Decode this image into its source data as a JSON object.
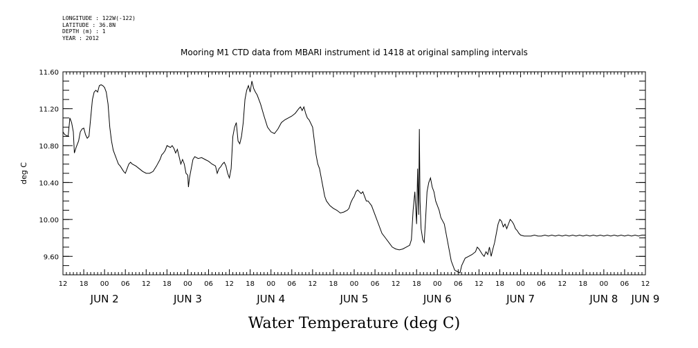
{
  "metadata": {
    "longitude": "LONGITUDE : 122W(-122)",
    "latitude": "LATITUDE : 36.8N",
    "depth": "DEPTH (m) : 1",
    "year": "YEAR : 2012"
  },
  "chart_data": {
    "type": "line",
    "title": "Mooring M1 CTD data from MBARI instrument id 1418 at original sampling intervals",
    "ylabel": "deg C",
    "xlabel": "Water Temperature (deg C)",
    "ylim": [
      9.4,
      11.6
    ],
    "yticks": [
      "11.60",
      "11.20",
      "10.80",
      "10.40",
      "10.00",
      "9.60"
    ],
    "ytick_values": [
      11.6,
      11.2,
      10.8,
      10.4,
      10.0,
      9.6
    ],
    "x_unit": "hours since JUN 1 12:00",
    "xlim": [
      0,
      168
    ],
    "hour_ticks": [
      {
        "t": 0,
        "label": "12"
      },
      {
        "t": 6,
        "label": "18"
      },
      {
        "t": 12,
        "label": "00"
      },
      {
        "t": 18,
        "label": "06"
      },
      {
        "t": 24,
        "label": "12"
      },
      {
        "t": 30,
        "label": "18"
      },
      {
        "t": 36,
        "label": "00"
      },
      {
        "t": 42,
        "label": "06"
      },
      {
        "t": 48,
        "label": "12"
      },
      {
        "t": 54,
        "label": "18"
      },
      {
        "t": 60,
        "label": "00"
      },
      {
        "t": 66,
        "label": "06"
      },
      {
        "t": 72,
        "label": "12"
      },
      {
        "t": 78,
        "label": "18"
      },
      {
        "t": 84,
        "label": "00"
      },
      {
        "t": 90,
        "label": "06"
      },
      {
        "t": 96,
        "label": "12"
      },
      {
        "t": 102,
        "label": "18"
      },
      {
        "t": 108,
        "label": "00"
      },
      {
        "t": 114,
        "label": "06"
      },
      {
        "t": 120,
        "label": "12"
      },
      {
        "t": 126,
        "label": "18"
      },
      {
        "t": 132,
        "label": "00"
      },
      {
        "t": 138,
        "label": "06"
      },
      {
        "t": 144,
        "label": "12"
      },
      {
        "t": 150,
        "label": "18"
      },
      {
        "t": 156,
        "label": "00"
      },
      {
        "t": 162,
        "label": "06"
      },
      {
        "t": 168,
        "label": "12"
      }
    ],
    "day_labels": [
      {
        "t": 12,
        "label": "JUN  2"
      },
      {
        "t": 36,
        "label": "JUN  3"
      },
      {
        "t": 60,
        "label": "JUN  4"
      },
      {
        "t": 84,
        "label": "JUN  5"
      },
      {
        "t": 108,
        "label": "JUN  6"
      },
      {
        "t": 132,
        "label": "JUN  7"
      },
      {
        "t": 156,
        "label": "JUN  8"
      },
      {
        "t": 168,
        "label": "JUN  9"
      }
    ],
    "series": [
      {
        "color": "#000000",
        "points": [
          [
            0,
            10.95
          ],
          [
            0.5,
            10.92
          ],
          [
            1,
            10.91
          ],
          [
            1.5,
            10.9
          ],
          [
            2,
            11.1
          ],
          [
            2.5,
            11.05
          ],
          [
            3,
            10.95
          ],
          [
            3.3,
            10.72
          ],
          [
            3.8,
            10.78
          ],
          [
            4.5,
            10.85
          ],
          [
            5,
            10.95
          ],
          [
            5.5,
            10.98
          ],
          [
            6,
            10.99
          ],
          [
            6.5,
            10.92
          ],
          [
            7,
            10.88
          ],
          [
            7.5,
            10.9
          ],
          [
            8,
            11.1
          ],
          [
            8.5,
            11.3
          ],
          [
            9,
            11.38
          ],
          [
            9.5,
            11.4
          ],
          [
            10,
            11.38
          ],
          [
            10.5,
            11.45
          ],
          [
            11,
            11.46
          ],
          [
            11.5,
            11.45
          ],
          [
            12,
            11.43
          ],
          [
            12.5,
            11.38
          ],
          [
            13,
            11.25
          ],
          [
            13.5,
            11.0
          ],
          [
            14,
            10.85
          ],
          [
            14.5,
            10.75
          ],
          [
            15,
            10.7
          ],
          [
            15.5,
            10.65
          ],
          [
            16,
            10.6
          ],
          [
            16.5,
            10.58
          ],
          [
            17,
            10.55
          ],
          [
            17.5,
            10.52
          ],
          [
            18,
            10.5
          ],
          [
            18.5,
            10.55
          ],
          [
            19,
            10.6
          ],
          [
            19.5,
            10.62
          ],
          [
            20,
            10.6
          ],
          [
            21,
            10.58
          ],
          [
            22,
            10.55
          ],
          [
            23,
            10.52
          ],
          [
            24,
            10.5
          ],
          [
            25,
            10.5
          ],
          [
            26,
            10.52
          ],
          [
            27,
            10.58
          ],
          [
            28,
            10.65
          ],
          [
            28.5,
            10.7
          ],
          [
            29,
            10.72
          ],
          [
            29.5,
            10.75
          ],
          [
            30,
            10.8
          ],
          [
            31,
            10.78
          ],
          [
            31.5,
            10.8
          ],
          [
            32,
            10.77
          ],
          [
            32.5,
            10.72
          ],
          [
            33,
            10.76
          ],
          [
            33.5,
            10.68
          ],
          [
            34,
            10.6
          ],
          [
            34.5,
            10.65
          ],
          [
            35,
            10.6
          ],
          [
            35.5,
            10.5
          ],
          [
            36,
            10.48
          ],
          [
            36.2,
            10.35
          ],
          [
            36.5,
            10.45
          ],
          [
            37,
            10.55
          ],
          [
            37.5,
            10.65
          ],
          [
            38,
            10.68
          ],
          [
            39,
            10.66
          ],
          [
            40,
            10.67
          ],
          [
            41,
            10.65
          ],
          [
            42,
            10.63
          ],
          [
            43,
            10.6
          ],
          [
            44,
            10.58
          ],
          [
            44.5,
            10.5
          ],
          [
            45,
            10.55
          ],
          [
            45.5,
            10.57
          ],
          [
            46,
            10.6
          ],
          [
            46.5,
            10.62
          ],
          [
            47,
            10.58
          ],
          [
            47.5,
            10.5
          ],
          [
            48,
            10.45
          ],
          [
            48.5,
            10.55
          ],
          [
            49,
            10.9
          ],
          [
            49.5,
            11.0
          ],
          [
            50,
            11.05
          ],
          [
            50.5,
            10.85
          ],
          [
            51,
            10.82
          ],
          [
            51.5,
            10.9
          ],
          [
            52,
            11.05
          ],
          [
            52.5,
            11.3
          ],
          [
            53,
            11.4
          ],
          [
            53.5,
            11.45
          ],
          [
            54,
            11.38
          ],
          [
            54.5,
            11.5
          ],
          [
            55,
            11.42
          ],
          [
            55.5,
            11.38
          ],
          [
            56,
            11.35
          ],
          [
            57,
            11.25
          ],
          [
            58,
            11.12
          ],
          [
            59,
            11.0
          ],
          [
            60,
            10.95
          ],
          [
            61,
            10.93
          ],
          [
            62,
            10.98
          ],
          [
            63,
            11.05
          ],
          [
            64,
            11.08
          ],
          [
            65,
            11.1
          ],
          [
            66,
            11.12
          ],
          [
            67,
            11.15
          ],
          [
            68,
            11.2
          ],
          [
            68.5,
            11.22
          ],
          [
            69,
            11.18
          ],
          [
            69.5,
            11.22
          ],
          [
            70,
            11.15
          ],
          [
            70.5,
            11.1
          ],
          [
            71,
            11.08
          ],
          [
            72,
            11.0
          ],
          [
            72.5,
            10.85
          ],
          [
            73,
            10.7
          ],
          [
            73.5,
            10.6
          ],
          [
            74,
            10.55
          ],
          [
            74.5,
            10.45
          ],
          [
            75,
            10.35
          ],
          [
            75.5,
            10.25
          ],
          [
            76,
            10.2
          ],
          [
            77,
            10.15
          ],
          [
            78,
            10.12
          ],
          [
            79,
            10.1
          ],
          [
            80,
            10.07
          ],
          [
            81,
            10.08
          ],
          [
            82,
            10.1
          ],
          [
            82.5,
            10.12
          ],
          [
            83,
            10.18
          ],
          [
            83.5,
            10.22
          ],
          [
            84,
            10.25
          ],
          [
            84.5,
            10.3
          ],
          [
            85,
            10.32
          ],
          [
            85.5,
            10.3
          ],
          [
            86,
            10.28
          ],
          [
            86.5,
            10.3
          ],
          [
            87,
            10.25
          ],
          [
            87.5,
            10.2
          ],
          [
            88,
            10.2
          ],
          [
            89,
            10.15
          ],
          [
            90,
            10.05
          ],
          [
            91,
            9.95
          ],
          [
            92,
            9.85
          ],
          [
            93,
            9.8
          ],
          [
            94,
            9.75
          ],
          [
            95,
            9.7
          ],
          [
            96,
            9.68
          ],
          [
            97,
            9.67
          ],
          [
            98,
            9.68
          ],
          [
            99,
            9.7
          ],
          [
            100,
            9.72
          ],
          [
            100.5,
            9.78
          ],
          [
            101,
            10.1
          ],
          [
            101.5,
            10.3
          ],
          [
            102,
            9.95
          ],
          [
            102.3,
            10.55
          ],
          [
            102.6,
            10.05
          ],
          [
            102.8,
            10.98
          ],
          [
            103,
            10.2
          ],
          [
            103.3,
            9.9
          ],
          [
            103.8,
            9.78
          ],
          [
            104.2,
            9.75
          ],
          [
            104.6,
            10.0
          ],
          [
            105,
            10.3
          ],
          [
            105.5,
            10.4
          ],
          [
            106,
            10.45
          ],
          [
            106.5,
            10.35
          ],
          [
            107,
            10.3
          ],
          [
            107.5,
            10.2
          ],
          [
            108,
            10.15
          ],
          [
            108.5,
            10.1
          ],
          [
            109,
            10.02
          ],
          [
            110,
            9.95
          ],
          [
            111,
            9.75
          ],
          [
            112,
            9.55
          ],
          [
            113,
            9.45
          ],
          [
            114,
            9.43
          ],
          [
            114.5,
            9.42
          ],
          [
            115,
            9.5
          ],
          [
            116,
            9.58
          ],
          [
            117,
            9.6
          ],
          [
            118,
            9.62
          ],
          [
            119,
            9.65
          ],
          [
            119.5,
            9.7
          ],
          [
            120,
            9.68
          ],
          [
            120.5,
            9.65
          ],
          [
            121,
            9.62
          ],
          [
            121.5,
            9.6
          ],
          [
            122,
            9.65
          ],
          [
            122.5,
            9.62
          ],
          [
            123,
            9.7
          ],
          [
            123.5,
            9.6
          ],
          [
            124,
            9.68
          ],
          [
            124.5,
            9.75
          ],
          [
            125,
            9.85
          ],
          [
            125.5,
            9.95
          ],
          [
            126,
            10.0
          ],
          [
            126.5,
            9.98
          ],
          [
            127,
            9.92
          ],
          [
            127.5,
            9.95
          ],
          [
            128,
            9.9
          ],
          [
            128.5,
            9.95
          ],
          [
            129,
            10.0
          ],
          [
            129.5,
            9.98
          ],
          [
            130,
            9.95
          ],
          [
            130.5,
            9.9
          ],
          [
            131,
            9.88
          ],
          [
            131.5,
            9.85
          ],
          [
            132,
            9.83
          ],
          [
            133,
            9.82
          ],
          [
            134,
            9.82
          ],
          [
            135,
            9.82
          ],
          [
            136,
            9.83
          ],
          [
            137,
            9.82
          ],
          [
            138,
            9.82
          ],
          [
            139,
            9.83
          ],
          [
            140,
            9.82
          ],
          [
            141,
            9.83
          ],
          [
            142,
            9.82
          ],
          [
            143,
            9.83
          ],
          [
            144,
            9.82
          ],
          [
            145,
            9.83
          ],
          [
            146,
            9.82
          ],
          [
            147,
            9.83
          ],
          [
            148,
            9.82
          ],
          [
            149,
            9.83
          ],
          [
            150,
            9.82
          ],
          [
            151,
            9.83
          ],
          [
            152,
            9.82
          ],
          [
            153,
            9.83
          ],
          [
            154,
            9.82
          ],
          [
            155,
            9.83
          ],
          [
            156,
            9.82
          ],
          [
            157,
            9.83
          ],
          [
            158,
            9.82
          ],
          [
            159,
            9.83
          ],
          [
            160,
            9.82
          ],
          [
            161,
            9.83
          ],
          [
            162,
            9.82
          ],
          [
            163,
            9.83
          ],
          [
            164,
            9.82
          ],
          [
            165,
            9.83
          ],
          [
            166,
            9.82
          ],
          [
            167,
            9.83
          ],
          [
            168,
            9.83
          ]
        ]
      }
    ]
  }
}
